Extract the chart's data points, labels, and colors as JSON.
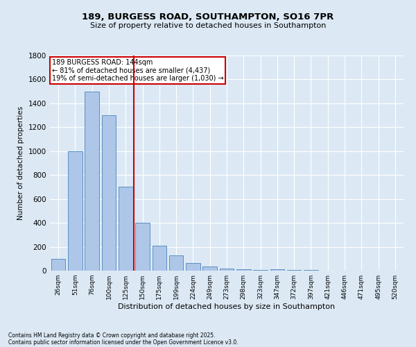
{
  "title1": "189, BURGESS ROAD, SOUTHAMPTON, SO16 7PR",
  "title2": "Size of property relative to detached houses in Southampton",
  "xlabel": "Distribution of detached houses by size in Southampton",
  "ylabel": "Number of detached properties",
  "categories": [
    "26sqm",
    "51sqm",
    "76sqm",
    "100sqm",
    "125sqm",
    "150sqm",
    "175sqm",
    "199sqm",
    "224sqm",
    "249sqm",
    "273sqm",
    "298sqm",
    "323sqm",
    "347sqm",
    "372sqm",
    "397sqm",
    "421sqm",
    "446sqm",
    "471sqm",
    "495sqm",
    "520sqm"
  ],
  "values": [
    100,
    1000,
    1500,
    1300,
    700,
    400,
    210,
    130,
    65,
    35,
    20,
    10,
    5,
    12,
    5,
    3,
    0,
    0,
    0,
    0,
    0
  ],
  "bar_color": "#aec6e8",
  "bar_edge_color": "#5a8fc2",
  "property_label": "189 BURGESS ROAD: 144sqm",
  "annotation_line1": "← 81% of detached houses are smaller (4,437)",
  "annotation_line2": "19% of semi-detached houses are larger (1,030) →",
  "vline_color": "#cc0000",
  "vline_x_index": 5,
  "annotation_box_color": "#cc0000",
  "ylim": [
    0,
    1800
  ],
  "yticks": [
    0,
    200,
    400,
    600,
    800,
    1000,
    1200,
    1400,
    1600,
    1800
  ],
  "bg_color": "#dce9f5",
  "plot_bg_color": "#dce9f5",
  "grid_color": "#ffffff",
  "footnote1": "Contains HM Land Registry data © Crown copyright and database right 2025.",
  "footnote2": "Contains public sector information licensed under the Open Government Licence v3.0."
}
